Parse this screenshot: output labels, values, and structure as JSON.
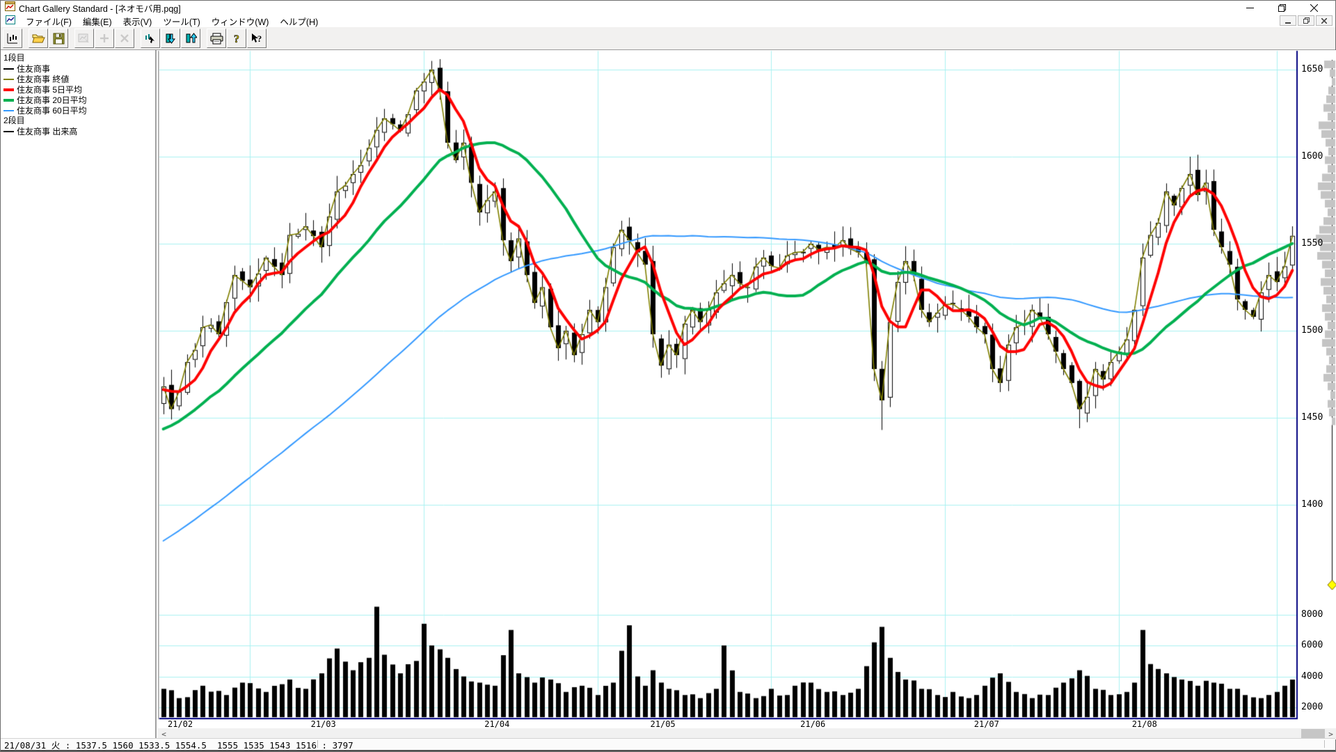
{
  "window": {
    "title": "Chart Gallery Standard - [ネオモバ用.pqg]",
    "icons": {
      "app": "chart-window-icon",
      "minimize": "minimize-icon",
      "restore": "restore-icon",
      "close": "close-icon"
    }
  },
  "menu": {
    "items": [
      {
        "label": "ファイル(F)"
      },
      {
        "label": "編集(E)"
      },
      {
        "label": "表示(V)"
      },
      {
        "label": "ツール(T)"
      },
      {
        "label": "ウィンドウ(W)"
      },
      {
        "label": "ヘルプ(H)"
      }
    ]
  },
  "toolbar": {
    "buttons": [
      {
        "name": "new-chart-button",
        "enabled": true
      },
      {
        "name": "open-file-button",
        "enabled": true
      },
      {
        "name": "save-file-button",
        "enabled": true
      },
      {
        "name": "edit-chart-button",
        "enabled": false
      },
      {
        "name": "add-button",
        "enabled": false
      },
      {
        "name": "delete-button",
        "enabled": false
      },
      {
        "name": "cursor-tool-button",
        "enabled": true
      },
      {
        "name": "scale-down-button",
        "enabled": true
      },
      {
        "name": "scale-up-button",
        "enabled": true
      },
      {
        "name": "print-button",
        "enabled": true
      },
      {
        "name": "help-button",
        "enabled": true
      },
      {
        "name": "context-help-button",
        "enabled": true
      }
    ]
  },
  "legend": {
    "sections": [
      {
        "title": "1段目",
        "items": [
          {
            "label": "住友商事",
            "color": "#000000",
            "weight": 2
          },
          {
            "label": "住友商事 終値",
            "color": "#808000",
            "weight": 2
          },
          {
            "label": "住友商事 5日平均",
            "color": "#ff0000",
            "weight": 4
          },
          {
            "label": "住友商事 20日平均",
            "color": "#00b050",
            "weight": 4
          },
          {
            "label": "住友商事 60日平均",
            "color": "#3399ff",
            "weight": 2
          }
        ]
      },
      {
        "title": "2段目",
        "items": [
          {
            "label": "住友商事 出来高",
            "color": "#000000",
            "weight": 2
          }
        ]
      }
    ]
  },
  "chart_data": {
    "type": "candlestick+volume",
    "security": "住友商事",
    "period": "2021/02 - 2021/08 (daily)",
    "days": 144,
    "colors": {
      "grid": "#a9f2f2",
      "frame": "#000080",
      "divider": "#a0a0a0",
      "candle_up": "#ffffff",
      "candle_down": "#000000",
      "wick": "#000000",
      "close_line": "#808000",
      "ma5": "#ff0000",
      "ma20": "#00b050",
      "ma60": "#3399ff",
      "volume_bar": "#000000",
      "volume_profile": "#c4c4c4",
      "marker_line": "#000000",
      "marker_diamond": "#ffff00"
    },
    "price_axis": {
      "labels": [
        "1650",
        "1600",
        "1550",
        "1500",
        "1450",
        "1400"
      ],
      "values": [
        1650,
        1600,
        1550,
        1500,
        1450,
        1400
      ]
    },
    "volume_axis": {
      "labels": [
        "8000",
        "6000",
        "4000",
        "2000"
      ],
      "values": [
        8000,
        6000,
        4000,
        2000
      ]
    },
    "date_labels": [
      {
        "label": "21/02",
        "day": 0
      },
      {
        "label": "21/03",
        "day": 19
      },
      {
        "label": "21/04",
        "day": 41
      },
      {
        "label": "21/05",
        "day": 62
      },
      {
        "label": "21/06",
        "day": 81
      },
      {
        "label": "21/07",
        "day": 103
      },
      {
        "label": "21/08",
        "day": 123
      }
    ],
    "vgrid_days": [
      11,
      33,
      55,
      77,
      99,
      121,
      141
    ],
    "close_keyframes": [
      [
        0,
        1468
      ],
      [
        1,
        1455
      ],
      [
        3,
        1482
      ],
      [
        5,
        1502
      ],
      [
        7,
        1498
      ],
      [
        9,
        1532
      ],
      [
        11,
        1525
      ],
      [
        13,
        1542
      ],
      [
        15,
        1532
      ],
      [
        16,
        1555
      ],
      [
        18,
        1560
      ],
      [
        20,
        1548
      ],
      [
        22,
        1580
      ],
      [
        24,
        1590
      ],
      [
        26,
        1605
      ],
      [
        28,
        1622
      ],
      [
        30,
        1615
      ],
      [
        32,
        1638
      ],
      [
        34,
        1650
      ],
      [
        35,
        1638
      ],
      [
        36,
        1608
      ],
      [
        37,
        1598
      ],
      [
        38,
        1608
      ],
      [
        39,
        1585
      ],
      [
        40,
        1568
      ],
      [
        41,
        1575
      ],
      [
        42,
        1580
      ],
      [
        43,
        1552
      ],
      [
        44,
        1540
      ],
      [
        45,
        1553
      ],
      [
        46,
        1532
      ],
      [
        47,
        1516
      ],
      [
        48,
        1525
      ],
      [
        49,
        1502
      ],
      [
        50,
        1490
      ],
      [
        51,
        1500
      ],
      [
        52,
        1486
      ],
      [
        53,
        1498
      ],
      [
        54,
        1512
      ],
      [
        55,
        1505
      ],
      [
        56,
        1525
      ],
      [
        57,
        1548
      ],
      [
        58,
        1558
      ],
      [
        59,
        1552
      ],
      [
        60,
        1545
      ],
      [
        61,
        1538
      ],
      [
        62,
        1498
      ],
      [
        63,
        1480
      ],
      [
        64,
        1492
      ],
      [
        65,
        1486
      ],
      [
        66,
        1504
      ],
      [
        67,
        1512
      ],
      [
        68,
        1505
      ],
      [
        70,
        1522
      ],
      [
        72,
        1532
      ],
      [
        74,
        1525
      ],
      [
        76,
        1542
      ],
      [
        78,
        1536
      ],
      [
        80,
        1545
      ],
      [
        82,
        1550
      ],
      [
        84,
        1548
      ],
      [
        86,
        1552
      ],
      [
        88,
        1545
      ],
      [
        89,
        1540
      ],
      [
        90,
        1478
      ],
      [
        91,
        1460
      ],
      [
        92,
        1505
      ],
      [
        93,
        1528
      ],
      [
        94,
        1540
      ],
      [
        95,
        1532
      ],
      [
        96,
        1512
      ],
      [
        97,
        1505
      ],
      [
        99,
        1515
      ],
      [
        101,
        1512
      ],
      [
        102,
        1508
      ],
      [
        103,
        1502
      ],
      [
        104,
        1498
      ],
      [
        105,
        1478
      ],
      [
        106,
        1470
      ],
      [
        107,
        1492
      ],
      [
        108,
        1502
      ],
      [
        110,
        1512
      ],
      [
        112,
        1498
      ],
      [
        113,
        1488
      ],
      [
        114,
        1478
      ],
      [
        115,
        1470
      ],
      [
        116,
        1455
      ],
      [
        117,
        1462
      ],
      [
        118,
        1478
      ],
      [
        119,
        1472
      ],
      [
        120,
        1482
      ],
      [
        121,
        1488
      ],
      [
        122,
        1495
      ],
      [
        123,
        1512
      ],
      [
        124,
        1542
      ],
      [
        125,
        1555
      ],
      [
        126,
        1562
      ],
      [
        127,
        1580
      ],
      [
        128,
        1572
      ],
      [
        129,
        1582
      ],
      [
        130,
        1590
      ],
      [
        131,
        1578
      ],
      [
        132,
        1585
      ],
      [
        133,
        1558
      ],
      [
        134,
        1548
      ],
      [
        135,
        1538
      ],
      [
        136,
        1518
      ],
      [
        137,
        1512
      ],
      [
        138,
        1508
      ],
      [
        139,
        1522
      ],
      [
        140,
        1532
      ],
      [
        141,
        1528
      ],
      [
        142,
        1537
      ],
      [
        143,
        1554.5
      ]
    ],
    "volume_keyframes": [
      [
        0,
        3200
      ],
      [
        2,
        2600
      ],
      [
        5,
        3400
      ],
      [
        8,
        2800
      ],
      [
        10,
        3600
      ],
      [
        13,
        3000
      ],
      [
        16,
        3800
      ],
      [
        18,
        3200
      ],
      [
        20,
        4200
      ],
      [
        22,
        5800
      ],
      [
        24,
        4400
      ],
      [
        26,
        5200
      ],
      [
        27,
        8500
      ],
      [
        28,
        5400
      ],
      [
        30,
        4200
      ],
      [
        32,
        5000
      ],
      [
        33,
        7400
      ],
      [
        34,
        6000
      ],
      [
        36,
        5200
      ],
      [
        38,
        4000
      ],
      [
        40,
        3600
      ],
      [
        42,
        3400
      ],
      [
        44,
        7000
      ],
      [
        45,
        4200
      ],
      [
        47,
        3600
      ],
      [
        49,
        3800
      ],
      [
        51,
        3000
      ],
      [
        53,
        3400
      ],
      [
        55,
        2800
      ],
      [
        57,
        3600
      ],
      [
        59,
        7300
      ],
      [
        60,
        4000
      ],
      [
        61,
        3400
      ],
      [
        62,
        4400
      ],
      [
        64,
        3200
      ],
      [
        66,
        2800
      ],
      [
        68,
        2600
      ],
      [
        70,
        3200
      ],
      [
        71,
        6000
      ],
      [
        73,
        3000
      ],
      [
        75,
        2600
      ],
      [
        77,
        3200
      ],
      [
        79,
        2800
      ],
      [
        80,
        3400
      ],
      [
        82,
        3600
      ],
      [
        84,
        3000
      ],
      [
        86,
        2800
      ],
      [
        88,
        3200
      ],
      [
        90,
        6200
      ],
      [
        91,
        7200
      ],
      [
        92,
        5200
      ],
      [
        94,
        3800
      ],
      [
        96,
        3200
      ],
      [
        98,
        2800
      ],
      [
        100,
        3000
      ],
      [
        102,
        2600
      ],
      [
        104,
        3400
      ],
      [
        106,
        4200
      ],
      [
        108,
        3000
      ],
      [
        110,
        2600
      ],
      [
        112,
        2800
      ],
      [
        114,
        3600
      ],
      [
        116,
        4400
      ],
      [
        118,
        3200
      ],
      [
        120,
        2800
      ],
      [
        122,
        3000
      ],
      [
        123,
        3600
      ],
      [
        124,
        7000
      ],
      [
        125,
        4800
      ],
      [
        127,
        4200
      ],
      [
        129,
        3800
      ],
      [
        131,
        3400
      ],
      [
        133,
        3600
      ],
      [
        135,
        3200
      ],
      [
        137,
        2800
      ],
      [
        139,
        2600
      ],
      [
        141,
        3000
      ],
      [
        142,
        3400
      ],
      [
        143,
        3797
      ]
    ],
    "forced_wicks": {
      "34": 1655,
      "91": 1443,
      "116": 1444,
      "130": 1600
    },
    "lead_in": {
      "days": 60,
      "from": 1280,
      "to": 1472
    },
    "moving_averages": [
      {
        "name": "5日平均",
        "period": 5,
        "color": "#ff0000",
        "width": 4
      },
      {
        "name": "20日平均",
        "period": 20,
        "color": "#00b050",
        "width": 4
      },
      {
        "name": "60日平均",
        "period": 60,
        "color": "#3399ff",
        "width": 2
      }
    ],
    "last_quote": {
      "date": "21/08/31",
      "weekday": "火",
      "open": 1537.5,
      "high": 1560,
      "low": 1533.5,
      "close": 1554.5,
      "volume": 3797
    },
    "volume_profile": {
      "top_price": 1655,
      "price_step": 5,
      "widths": [
        16,
        8,
        5,
        10,
        13,
        17,
        11,
        24,
        20,
        14,
        10,
        15,
        11,
        19,
        25,
        21,
        15,
        11,
        17,
        23,
        28,
        22,
        26,
        19,
        15,
        21,
        17,
        13,
        19,
        15,
        11,
        15,
        19,
        13,
        9,
        13,
        17,
        11,
        7,
        11,
        9,
        5
      ]
    }
  },
  "scrollbar": {
    "left_glyph": "<",
    "right_glyph": ">"
  },
  "statusbar": {
    "text": "21/08/31 火 : 1537.5 1560 1533.5 1554.5  1555 1535 1543 1516 : 3797"
  }
}
